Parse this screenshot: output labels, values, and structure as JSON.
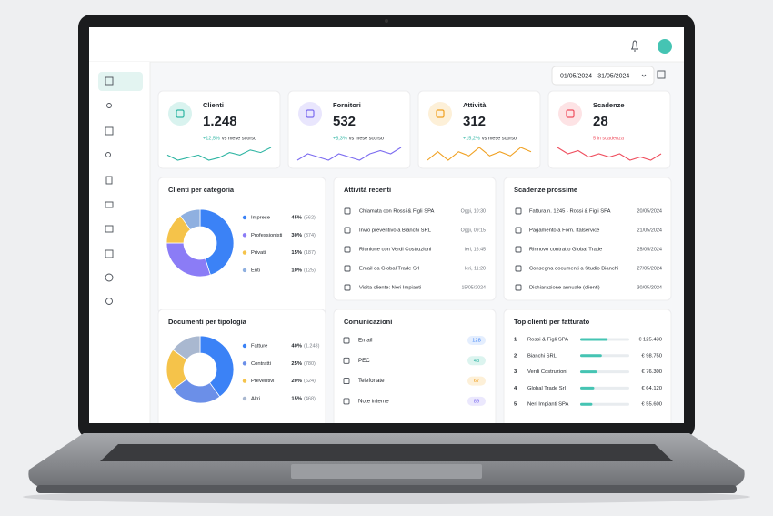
{
  "header": {
    "date_range": "01/05/2024 - 31/05/2024"
  },
  "kpis": [
    {
      "label": "Clienti",
      "value": "1.248",
      "change": "+12,5%",
      "note": "vs mese scorso",
      "color": "#2fb5a3",
      "bg": "#d9f3ef",
      "trend": [
        5,
        4,
        4.5,
        5,
        4,
        4.5,
        5.5,
        5,
        6,
        5.5,
        6.5
      ]
    },
    {
      "label": "Fornitori",
      "value": "532",
      "change": "+8,3%",
      "note": "vs mese scorso",
      "color": "#7c6cf0",
      "bg": "#e9e6fd",
      "trend": [
        4,
        5,
        4.5,
        4,
        5,
        4.5,
        4,
        5,
        5.5,
        5,
        6
      ]
    },
    {
      "label": "Attività",
      "value": "312",
      "change": "+15,2%",
      "note": "vs mese scorso",
      "color": "#f0a020",
      "bg": "#fdf0d8",
      "trend": [
        4,
        5,
        4,
        5,
        4.5,
        5.5,
        4.5,
        5,
        4.5,
        5.5,
        5
      ]
    },
    {
      "label": "Scadenze",
      "value": "28",
      "note": "5 in scadenza",
      "color": "#ef4f5f",
      "bg": "#fde3e5",
      "trend": [
        6,
        5,
        5.5,
        4.5,
        5,
        4.5,
        5,
        4,
        4.5,
        4,
        5
      ]
    }
  ],
  "clienti_per_categoria": {
    "title": "Clienti per categoria",
    "categories": [
      "Imprese",
      "Professionisti",
      "Privati",
      "Enti"
    ],
    "values": [
      45,
      30,
      15,
      10
    ],
    "value_labels": [
      "45%",
      "30%",
      "15%",
      "10%"
    ],
    "counts": [
      "(562)",
      "(374)",
      "(187)",
      "(125)"
    ],
    "colors": [
      "#3b82f6",
      "#8b7cf6",
      "#f5c34a",
      "#8fb0e0"
    ]
  },
  "attivita_recenti": {
    "title": "Attività recenti",
    "items": [
      {
        "text": "Chiamata con Rossi & Figli SPA",
        "time": "Oggi, 10:30"
      },
      {
        "text": "Invio preventivo a Bianchi SRL",
        "time": "Oggi, 09:15"
      },
      {
        "text": "Riunione con Verdi Costruzioni",
        "time": "Ieri, 16:45"
      },
      {
        "text": "Email da Global Trade Srl",
        "time": "Ieri, 11:20"
      },
      {
        "text": "Visita cliente: Neri Impianti",
        "time": "15/05/2024"
      }
    ]
  },
  "scadenze_prossime": {
    "title": "Scadenze prossime",
    "items": [
      {
        "text": "Fattura n. 1245 - Rossi & Figli SPA",
        "date": "20/05/2024"
      },
      {
        "text": "Pagamento a Forn. Italservice",
        "date": "21/05/2024"
      },
      {
        "text": "Rinnovo contratto Global Trade",
        "date": "25/05/2024"
      },
      {
        "text": "Consegna documenti a Studio Bianchi",
        "date": "27/05/2024"
      },
      {
        "text": "Dichiarazione annuale (clienti)",
        "date": "30/05/2024"
      }
    ]
  },
  "documenti_per_tipologia": {
    "title": "Documenti per tipologia",
    "categories": [
      "Fatture",
      "Contratti",
      "Preventivi",
      "Altri"
    ],
    "values": [
      40,
      25,
      20,
      15
    ],
    "value_labels": [
      "40%",
      "25%",
      "20%",
      "15%"
    ],
    "counts": [
      "(1.248)",
      "(780)",
      "(624)",
      "(468)"
    ],
    "colors": [
      "#3b82f6",
      "#6b8fe8",
      "#f5c34a",
      "#a9b8d0"
    ]
  },
  "comunicazioni": {
    "title": "Comunicazioni",
    "items": [
      {
        "label": "Email",
        "count": 128,
        "color": "#3b82f6",
        "bg": "#e4eefe"
      },
      {
        "label": "PEC",
        "count": 43,
        "color": "#2fb5a3",
        "bg": "#dcf4ef"
      },
      {
        "label": "Telefonate",
        "count": 67,
        "color": "#f0a020",
        "bg": "#fdf0d8"
      },
      {
        "label": "Note interne",
        "count": 89,
        "color": "#7c6cf0",
        "bg": "#ebe8fd"
      }
    ]
  },
  "top_clienti": {
    "title": "Top clienti per fatturato",
    "ranks": [
      1,
      2,
      3,
      4,
      5
    ],
    "names": [
      "Rossi & Figli SPA",
      "Bianchi SRL",
      "Verdi Costruzioni",
      "Global Trade Srl",
      "Neri Impianti SPA"
    ],
    "values": [
      125430,
      98750,
      76300,
      64120,
      55600
    ],
    "value_labels": [
      "€ 125.430",
      "€ 98.750",
      "€ 76.300",
      "€ 64.120",
      "€ 55.600"
    ],
    "color": "#45c4b3"
  }
}
